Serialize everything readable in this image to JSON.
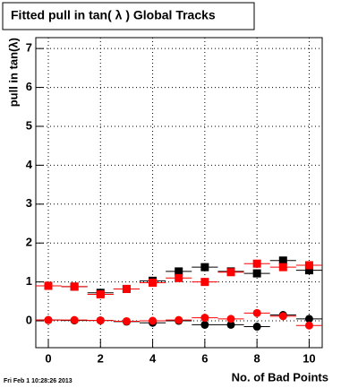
{
  "chart_data": {
    "type": "scatter",
    "title": "Fitted pull in tan( λ )  Global Tracks",
    "x_label": "No. of Bad Points",
    "y_label": "pull in tan(λ)",
    "footer": "Fri Feb  1 10:28:26 2013",
    "x": [
      0,
      1,
      2,
      3,
      4,
      5,
      6,
      7,
      8,
      9,
      10
    ],
    "series": [
      {
        "marker": "square",
        "color": "#000000",
        "values": [
          0.9,
          0.88,
          0.72,
          0.82,
          1.03,
          1.27,
          1.38,
          1.27,
          1.22,
          1.55,
          1.3
        ]
      },
      {
        "marker": "square",
        "color": "#ff0000",
        "values": [
          0.9,
          0.88,
          0.68,
          0.82,
          0.98,
          1.1,
          1.0,
          1.25,
          1.47,
          1.38,
          1.43
        ]
      },
      {
        "marker": "circle",
        "color": "#000000",
        "values": [
          0.02,
          0.01,
          0.01,
          -0.02,
          -0.05,
          0.0,
          -0.1,
          -0.1,
          -0.15,
          0.15,
          0.05
        ]
      },
      {
        "marker": "circle",
        "color": "#ff0000",
        "values": [
          0.02,
          0.02,
          0.01,
          -0.01,
          0.0,
          0.02,
          0.08,
          0.05,
          0.2,
          0.12,
          -0.12
        ]
      }
    ],
    "xlim": [
      -0.48,
      10.5
    ],
    "ylim": [
      -0.69,
      7.28
    ],
    "xticks": [
      0,
      2,
      4,
      6,
      8,
      10
    ],
    "yticks": [
      0,
      1,
      2,
      3,
      4,
      5,
      6,
      7
    ],
    "grid": true
  }
}
